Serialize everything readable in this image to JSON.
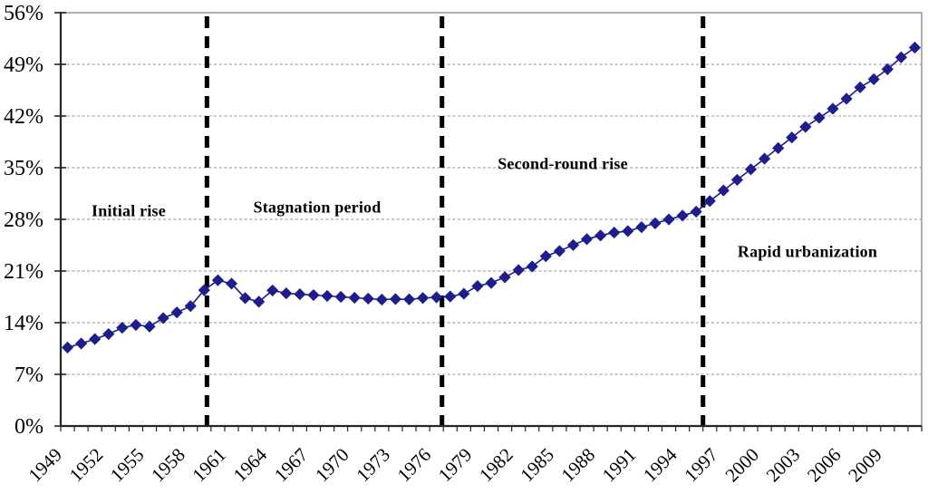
{
  "chart_data": {
    "type": "line",
    "title": "",
    "xlabel": "",
    "ylabel": "",
    "grid": "horizontal-dashed",
    "legend_position": "none",
    "marker": "diamond",
    "ylim": [
      0,
      56
    ],
    "ytick_values": [
      0,
      7,
      14,
      21,
      28,
      35,
      42,
      49,
      56
    ],
    "ytick_labels": [
      "0%",
      "7%",
      "14%",
      "21%",
      "28%",
      "35%",
      "42%",
      "49%",
      "56%"
    ],
    "xtick_years": [
      1949,
      1952,
      1955,
      1958,
      1961,
      1964,
      1967,
      1970,
      1973,
      1976,
      1979,
      1982,
      1985,
      1988,
      1991,
      1994,
      1997,
      2000,
      2003,
      2006,
      2009
    ],
    "years": [
      1949,
      1950,
      1951,
      1952,
      1953,
      1954,
      1955,
      1956,
      1957,
      1958,
      1959,
      1960,
      1961,
      1962,
      1963,
      1964,
      1965,
      1966,
      1967,
      1968,
      1969,
      1970,
      1971,
      1972,
      1973,
      1974,
      1975,
      1976,
      1977,
      1978,
      1979,
      1980,
      1981,
      1982,
      1983,
      1984,
      1985,
      1986,
      1987,
      1988,
      1989,
      1990,
      1991,
      1992,
      1993,
      1994,
      1995,
      1996,
      1997,
      1998,
      1999,
      2000,
      2001,
      2002,
      2003,
      2004,
      2005,
      2006,
      2007,
      2008,
      2009,
      2010,
      2011
    ],
    "values": [
      10.64,
      11.18,
      11.78,
      12.46,
      13.31,
      13.69,
      13.48,
      14.62,
      15.39,
      16.25,
      18.41,
      19.75,
      19.29,
      17.33,
      16.84,
      18.37,
      17.98,
      17.86,
      17.74,
      17.62,
      17.5,
      17.38,
      17.26,
      17.13,
      17.2,
      17.16,
      17.34,
      17.44,
      17.55,
      17.92,
      18.96,
      19.39,
      20.16,
      21.13,
      21.62,
      23.01,
      23.71,
      24.52,
      25.32,
      25.81,
      26.21,
      26.41,
      26.94,
      27.46,
      27.99,
      28.51,
      29.04,
      30.48,
      31.91,
      33.35,
      34.78,
      36.22,
      37.66,
      39.09,
      40.53,
      41.76,
      42.99,
      44.34,
      45.89,
      46.99,
      48.34,
      49.95,
      51.27
    ],
    "phase_line_years": [
      1959.2,
      1976.4,
      1995.5
    ],
    "annotations": [
      {
        "text": "Initial rise",
        "year": 1953.6,
        "value": 29.1
      },
      {
        "text": "Stagnation period",
        "year": 1967.4,
        "value": 29.6
      },
      {
        "text": "Second-round rise",
        "year": 1985.3,
        "value": 35.5
      },
      {
        "text": "Rapid urbanization",
        "year": 2003.2,
        "value": 23.6
      }
    ],
    "colors": {
      "series": "#1d1d8c",
      "grid": "#b9b9b9",
      "axis": "#262626",
      "border": "#9c9c9c",
      "phase_line": "#000000",
      "text": "#000000"
    }
  }
}
